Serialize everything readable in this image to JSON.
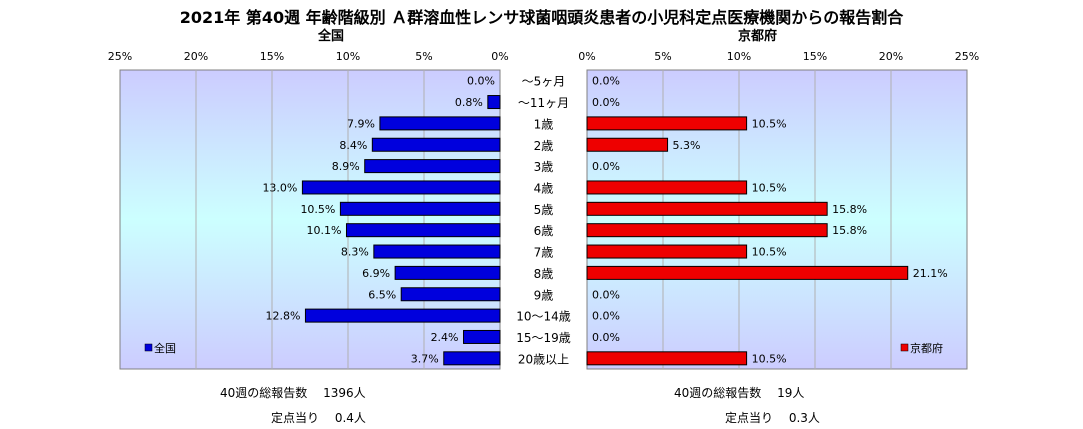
{
  "title": "2021年 第40週 年齢階級別 Ａ群溶血性レンサ球菌咽頭炎患者の小児科定点医療機関からの報告割合",
  "colors": {
    "left_bar": "#0000dd",
    "right_bar": "#ee0000",
    "panel_top": "#ccccff",
    "panel_mid": "#ccffff"
  },
  "chart_data": [
    {
      "type": "bar",
      "orientation": "horizontal-reversed",
      "title": "全国",
      "legend": {
        "label": "全国",
        "placement": "bottom-left"
      },
      "xlim": [
        0,
        25
      ],
      "x_ticks": [
        "25%",
        "20%",
        "15%",
        "10%",
        "5%",
        "0%"
      ],
      "grid": true,
      "categories": [
        "～5ヶ月",
        "～11ヶ月",
        "1歳",
        "2歳",
        "3歳",
        "4歳",
        "5歳",
        "6歳",
        "7歳",
        "8歳",
        "9歳",
        "10～14歳",
        "15～19歳",
        "20歳以上"
      ],
      "values": [
        0.0,
        0.8,
        7.9,
        8.4,
        8.9,
        13.0,
        10.5,
        10.1,
        8.3,
        6.9,
        6.5,
        12.8,
        2.4,
        3.7
      ],
      "value_labels": [
        "0.0%",
        "0.8%",
        "7.9%",
        "8.4%",
        "8.9%",
        "13.0%",
        "10.5%",
        "10.1%",
        "8.3%",
        "6.9%",
        "6.5%",
        "12.8%",
        "2.4%",
        "3.7%"
      ]
    },
    {
      "type": "bar",
      "orientation": "horizontal",
      "title": "京都府",
      "legend": {
        "label": "京都府",
        "placement": "bottom-right"
      },
      "xlim": [
        0,
        25
      ],
      "x_ticks": [
        "0%",
        "5%",
        "10%",
        "15%",
        "20%",
        "25%"
      ],
      "grid": true,
      "categories": [
        "～5ヶ月",
        "～11ヶ月",
        "1歳",
        "2歳",
        "3歳",
        "4歳",
        "5歳",
        "6歳",
        "7歳",
        "8歳",
        "9歳",
        "10～14歳",
        "15～19歳",
        "20歳以上"
      ],
      "values": [
        0.0,
        0.0,
        10.5,
        5.3,
        0.0,
        10.5,
        15.8,
        15.8,
        10.5,
        21.1,
        0.0,
        0.0,
        0.0,
        10.5
      ],
      "value_labels": [
        "0.0%",
        "0.0%",
        "10.5%",
        "5.3%",
        "0.0%",
        "10.5%",
        "15.8%",
        "15.8%",
        "10.5%",
        "21.1%",
        "0.0%",
        "0.0%",
        "0.0%",
        "10.5%"
      ]
    }
  ],
  "footer": {
    "left_total": "40週の総報告数　 1396人",
    "left_per": "定点当り　 0.4人",
    "right_total": "40週の総報告数　 19人",
    "right_per": "定点当り　 0.3人"
  }
}
